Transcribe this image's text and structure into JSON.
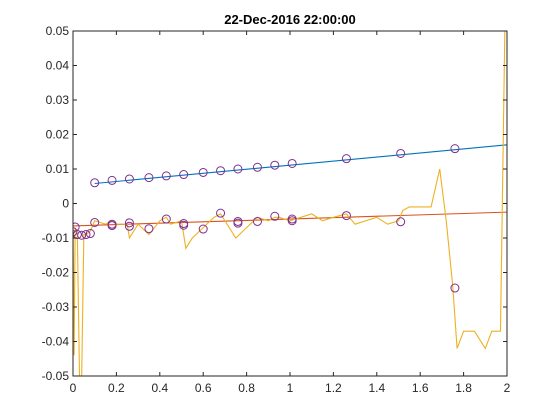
{
  "chart_data": {
    "type": "line",
    "title": "22-Dec-2016 22:00:00",
    "xlabel": "",
    "ylabel": "",
    "xlim": [
      0,
      2
    ],
    "ylim": [
      -0.05,
      0.05
    ],
    "xticks": [
      0,
      0.2,
      0.4,
      0.6,
      0.8,
      1,
      1.2,
      1.4,
      1.6,
      1.8,
      2
    ],
    "xtick_labels": [
      "0",
      "0.2",
      "0.4",
      "0.6",
      "0.8",
      "1",
      "1.2",
      "1.4",
      "1.6",
      "1.8",
      "2"
    ],
    "yticks": [
      -0.05,
      -0.04,
      -0.03,
      -0.02,
      -0.01,
      0,
      0.01,
      0.02,
      0.03,
      0.04,
      0.05
    ],
    "ytick_labels": [
      "-0.05",
      "-0.04",
      "-0.03",
      "-0.02",
      "-0.01",
      "0",
      "0.01",
      "0.02",
      "0.03",
      "0.04",
      "0.05"
    ],
    "grid": false,
    "colors": {
      "blue_line": "#0072BD",
      "orange_line": "#D95319",
      "yellow_line": "#EDB120",
      "markers": "#7E2F8E",
      "axis": "#262626"
    },
    "series": [
      {
        "kind": "line",
        "color_key": "blue_line",
        "x": [
          0.1,
          2.0
        ],
        "y": [
          0.0058,
          0.017
        ]
      },
      {
        "kind": "line",
        "color_key": "orange_line",
        "x": [
          0.0,
          2.0
        ],
        "y": [
          -0.0065,
          -0.0025
        ]
      },
      {
        "kind": "line",
        "color_key": "yellow_line",
        "x": [
          0.0,
          0.005,
          0.01,
          0.02,
          0.03,
          0.04,
          0.05,
          0.06,
          0.08,
          0.1,
          0.15,
          0.18,
          0.2,
          0.25,
          0.26,
          0.28,
          0.3,
          0.35,
          0.4,
          0.43,
          0.45,
          0.5,
          0.52,
          0.55,
          0.6,
          0.65,
          0.68,
          0.7,
          0.75,
          0.8,
          0.85,
          0.9,
          0.93,
          0.95,
          1.0,
          1.05,
          1.1,
          1.15,
          1.2,
          1.26,
          1.3,
          1.35,
          1.4,
          1.45,
          1.5,
          1.52,
          1.55,
          1.6,
          1.65,
          1.69,
          1.72,
          1.75,
          1.77,
          1.8,
          1.85,
          1.9,
          1.93,
          1.97,
          1.99
        ],
        "y": [
          -0.008,
          -0.044,
          -0.007,
          -0.009,
          -0.05,
          -0.05,
          -0.009,
          -0.009,
          -0.008,
          -0.005,
          -0.006,
          -0.005,
          -0.006,
          -0.006,
          -0.01,
          -0.008,
          -0.006,
          -0.009,
          -0.005,
          -0.004,
          -0.006,
          -0.005,
          -0.013,
          -0.01,
          -0.007,
          -0.004,
          -0.003,
          -0.005,
          -0.01,
          -0.007,
          -0.004,
          -0.005,
          -0.004,
          -0.004,
          -0.005,
          -0.004,
          -0.003,
          -0.005,
          -0.004,
          -0.003,
          -0.006,
          -0.005,
          -0.004,
          -0.006,
          -0.005,
          -0.002,
          -0.001,
          -0.001,
          -0.001,
          0.01,
          -0.005,
          -0.024,
          -0.042,
          -0.037,
          -0.037,
          -0.042,
          -0.037,
          -0.037,
          0.05
        ]
      },
      {
        "kind": "markers",
        "color_key": "markers",
        "x": [
          0.1,
          0.18,
          0.26,
          0.35,
          0.43,
          0.51,
          0.6,
          0.68,
          0.76,
          0.85,
          0.93,
          1.01,
          1.26,
          1.51,
          1.76
        ],
        "y": [
          0.006,
          0.0067,
          0.0071,
          0.0075,
          0.008,
          0.0084,
          0.009,
          0.0095,
          0.01,
          0.0105,
          0.0111,
          0.0116,
          0.013,
          0.0145,
          0.0159
        ]
      },
      {
        "kind": "markers",
        "color_key": "markers",
        "x": [
          0.0,
          0.01,
          0.02,
          0.04,
          0.06,
          0.08,
          0.1,
          0.18,
          0.18,
          0.26,
          0.26,
          0.35,
          0.43,
          0.51,
          0.51,
          0.6,
          0.68,
          0.76,
          0.76,
          0.85,
          0.93,
          1.01,
          1.01,
          1.26,
          1.51,
          1.76
        ],
        "y": [
          -0.0082,
          -0.0068,
          -0.009,
          -0.0092,
          -0.009,
          -0.0087,
          -0.0055,
          -0.006,
          -0.0064,
          -0.0056,
          -0.0066,
          -0.0073,
          -0.0045,
          -0.0058,
          -0.0063,
          -0.0074,
          -0.0028,
          -0.0052,
          -0.0057,
          -0.0052,
          -0.0037,
          -0.0045,
          -0.005,
          -0.0035,
          -0.0053,
          -0.0245
        ]
      }
    ]
  }
}
